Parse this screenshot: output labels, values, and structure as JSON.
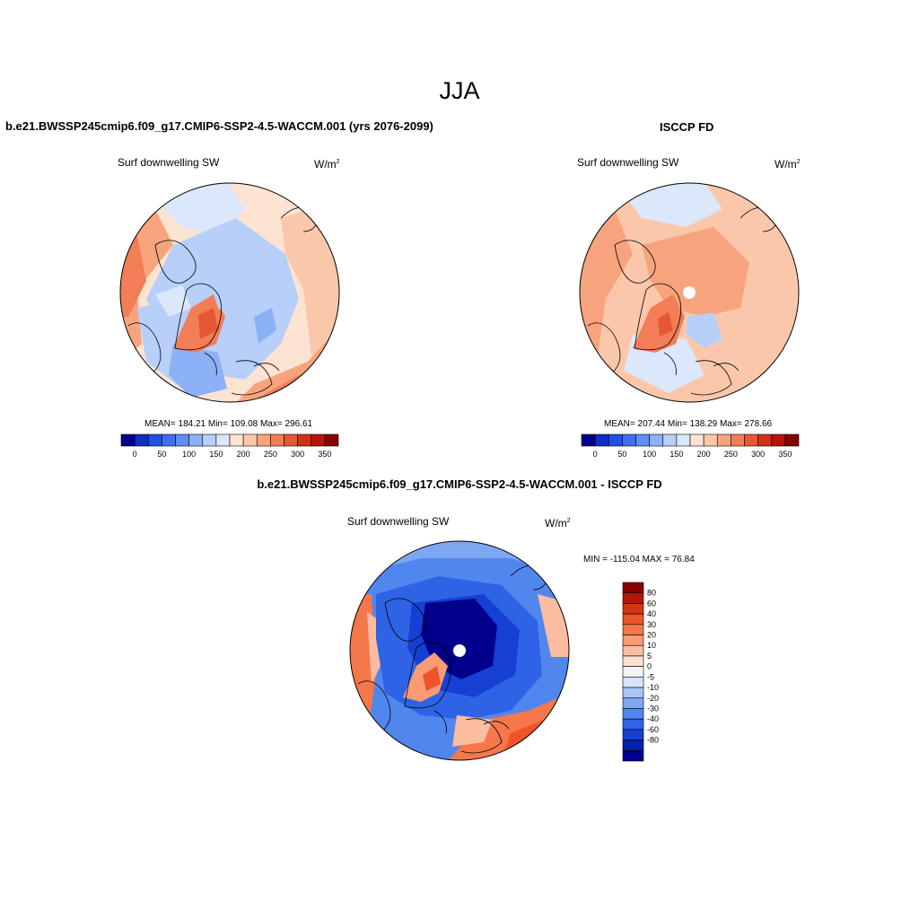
{
  "figure": {
    "season": "JJA"
  },
  "panels": {
    "model": {
      "title": "b.e21.BWSSP245cmip6.f09_g17.CMIP6-SSP2-4.5-WACCM.001 (yrs 2076-2099)",
      "field": "Surf downwelling SW",
      "units_base": "W/m",
      "units_exp": "2",
      "stats": "MEAN= 184.21  Min= 109.08  Max= 296.61"
    },
    "obs": {
      "title": "ISCCP FD",
      "field": "Surf downwelling SW",
      "units_base": "W/m",
      "units_exp": "2",
      "stats": "MEAN= 207.44  Min= 138.29  Max= 278.66"
    },
    "diff": {
      "title": "b.e21.BWSSP245cmip6.f09_g17.CMIP6-SSP2-4.5-WACCM.001 - ISCCP FD",
      "field": "Surf downwelling SW",
      "units_base": "W/m",
      "units_exp": "2",
      "stats": "MIN = -115.04 MAX =  76.84"
    }
  },
  "colorbars": {
    "absolute": {
      "colors": [
        "#00008b",
        "#0e2fbf",
        "#2151e0",
        "#3d6fef",
        "#5f8ff4",
        "#8cb1f7",
        "#b7cff9",
        "#dbe7fb",
        "#fde3d2",
        "#fbc7aa",
        "#f7a47e",
        "#f27d56",
        "#e65733",
        "#d03219",
        "#b3160b",
        "#880000"
      ],
      "labels": [
        "0",
        "50",
        "100",
        "150",
        "200",
        "250",
        "300",
        "350"
      ]
    },
    "difference": {
      "colors": [
        "#880000",
        "#b3160b",
        "#d43415",
        "#ee5427",
        "#f5784a",
        "#f99b74",
        "#fbbc9f",
        "#fde0cf",
        "#f3f3f3",
        "#d6e4f8",
        "#a9c4f5",
        "#7ea6f2",
        "#5286ef",
        "#2f63e6",
        "#1540d3",
        "#0620b0",
        "#00008b"
      ],
      "labels": [
        "80",
        "60",
        "40",
        "30",
        "20",
        "10",
        "5",
        "0",
        "-5",
        "-10",
        "-20",
        "-30",
        "-40",
        "-60",
        "-80"
      ]
    }
  }
}
